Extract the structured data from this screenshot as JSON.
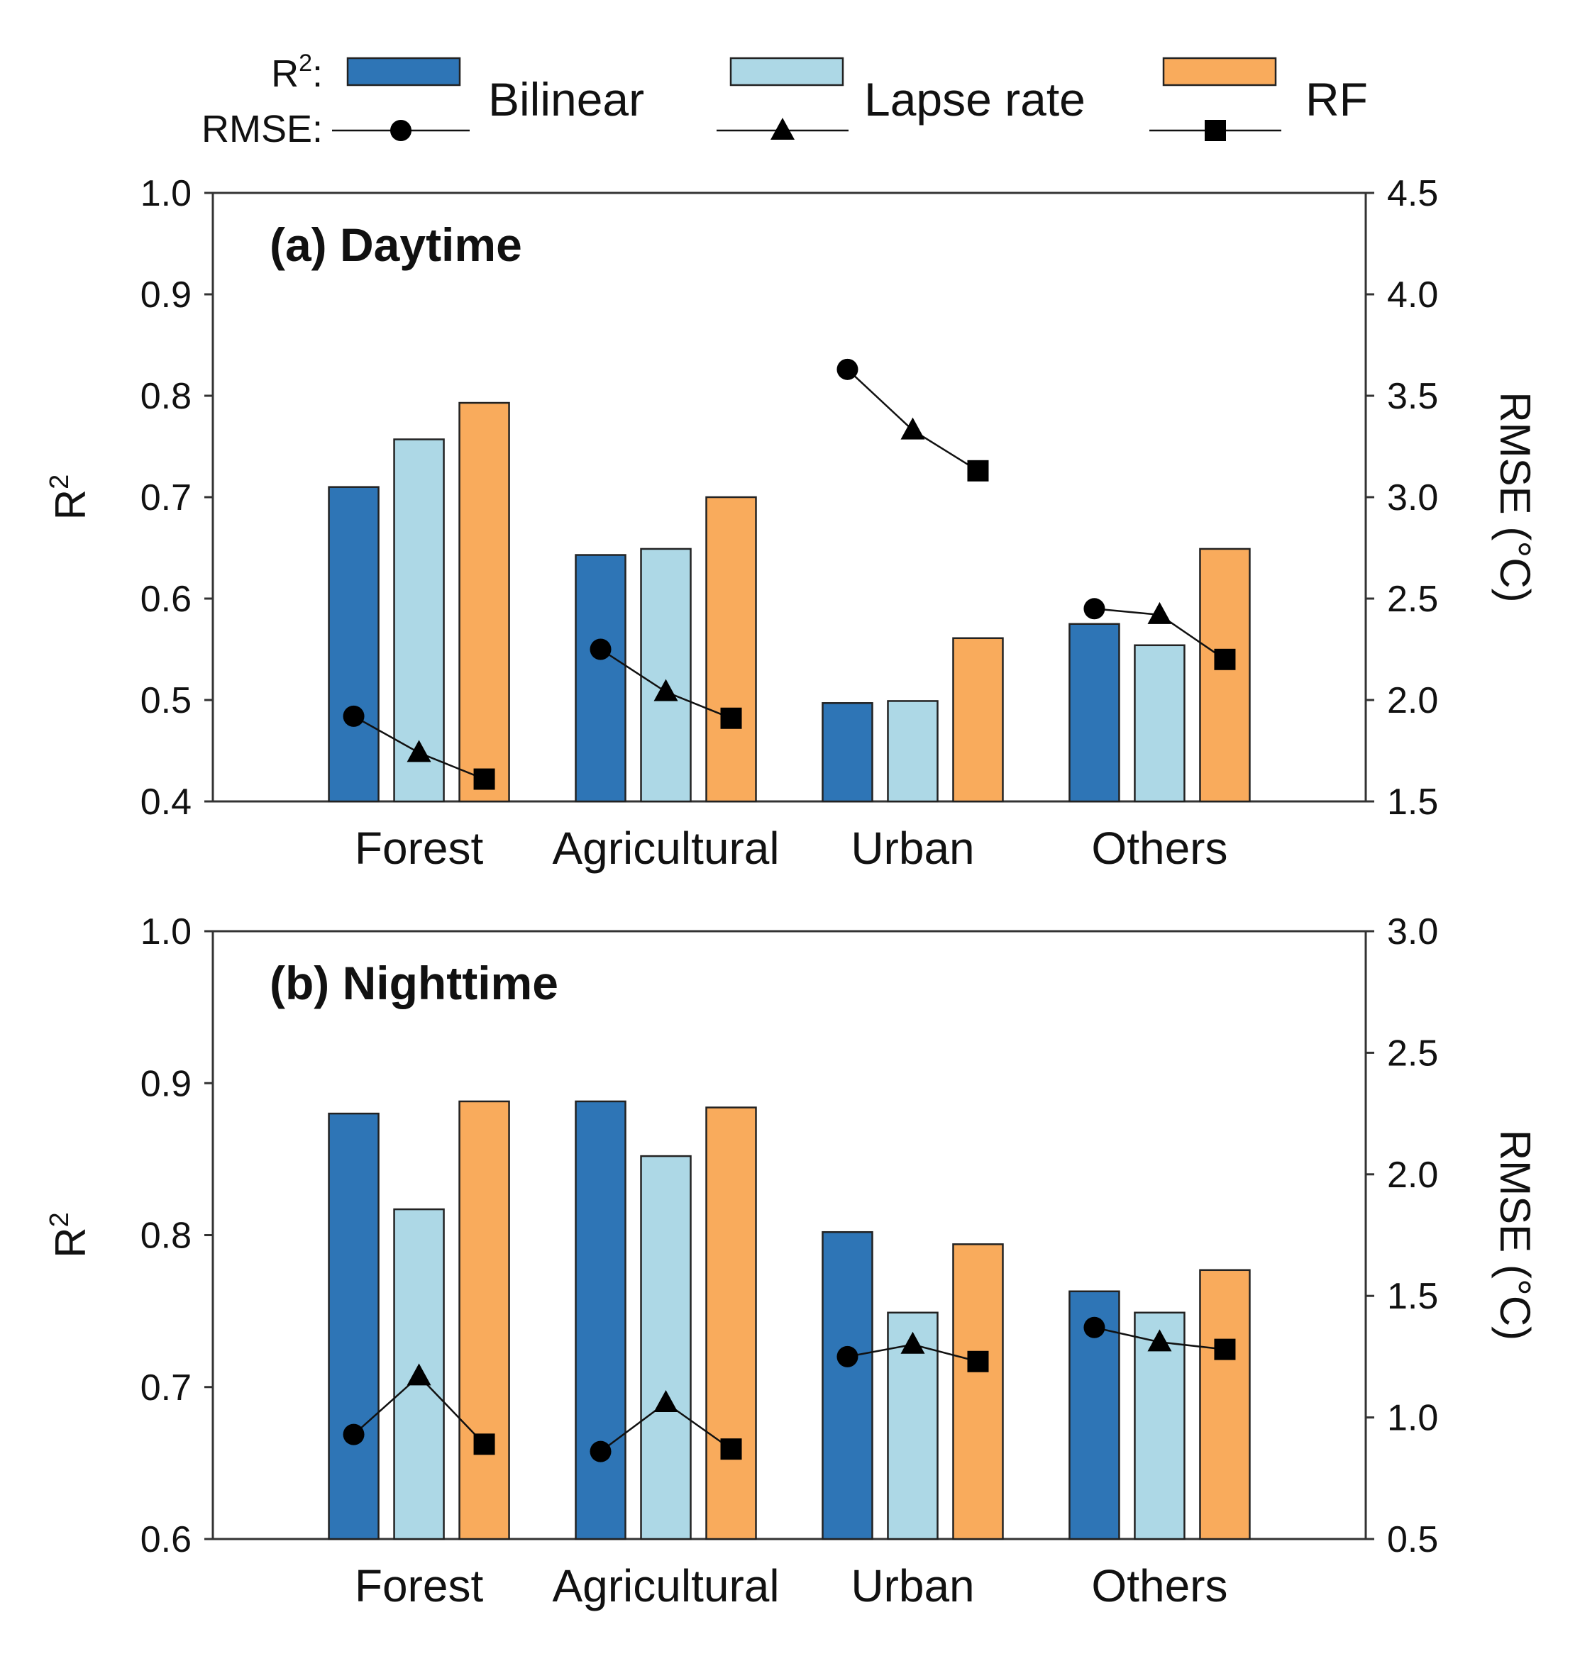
{
  "legend": {
    "r2_key": "R",
    "r2_sup": "2",
    "r2_suffix": ":",
    "rmse_key": "RMSE:",
    "items": [
      {
        "label": "Bilinear",
        "color": "#2e75b6",
        "marker": "circle"
      },
      {
        "label": "Lapse rate",
        "color": "#add8e6",
        "marker": "triangle"
      },
      {
        "label": "RF",
        "color": "#f9ab5c",
        "marker": "square"
      }
    ]
  },
  "chart_data": [
    {
      "type": "bar",
      "title": "(a) Daytime",
      "categories": [
        "Forest",
        "Agricultural",
        "Urban",
        "Others"
      ],
      "ylabel": "R",
      "ylabel_sup": "2",
      "y2label": "RMSE (°C)",
      "ylim": [
        0.4,
        1.0
      ],
      "yticks": [
        "0.4",
        "0.5",
        "0.6",
        "0.7",
        "0.8",
        "0.9",
        "1.0"
      ],
      "y2lim": [
        1.5,
        4.5
      ],
      "y2ticks": [
        "1.5",
        "2.0",
        "2.5",
        "3.0",
        "3.5",
        "4.0",
        "4.5"
      ],
      "series": [
        {
          "name": "Bilinear",
          "r2": [
            0.71,
            0.643,
            0.497,
            0.575
          ],
          "rmse": [
            1.92,
            2.25,
            3.63,
            2.45
          ]
        },
        {
          "name": "Lapse rate",
          "r2": [
            0.757,
            0.649,
            0.499,
            0.554
          ],
          "rmse": [
            1.74,
            2.04,
            3.33,
            2.42
          ]
        },
        {
          "name": "RF",
          "r2": [
            0.793,
            0.7,
            0.561,
            0.649
          ],
          "rmse": [
            1.61,
            1.91,
            3.13,
            2.2
          ]
        }
      ]
    },
    {
      "type": "bar",
      "title": "(b) Nighttime",
      "categories": [
        "Forest",
        "Agricultural",
        "Urban",
        "Others"
      ],
      "ylabel": "R",
      "ylabel_sup": "2",
      "y2label": "RMSE (°C)",
      "ylim": [
        0.6,
        1.0
      ],
      "yticks": [
        "0.6",
        "0.7",
        "0.8",
        "0.9",
        "1.0"
      ],
      "y2lim": [
        0.5,
        3.0
      ],
      "y2ticks": [
        "0.5",
        "1.0",
        "1.5",
        "2.0",
        "2.5",
        "3.0"
      ],
      "series": [
        {
          "name": "Bilinear",
          "r2": [
            0.88,
            0.888,
            0.802,
            0.763
          ],
          "rmse": [
            0.93,
            0.86,
            1.25,
            1.37
          ]
        },
        {
          "name": "Lapse rate",
          "r2": [
            0.817,
            0.852,
            0.749,
            0.749
          ],
          "rmse": [
            1.17,
            1.06,
            1.3,
            1.31
          ]
        },
        {
          "name": "RF",
          "r2": [
            0.888,
            0.884,
            0.794,
            0.777
          ],
          "rmse": [
            0.89,
            0.87,
            1.23,
            1.28
          ]
        }
      ]
    }
  ]
}
